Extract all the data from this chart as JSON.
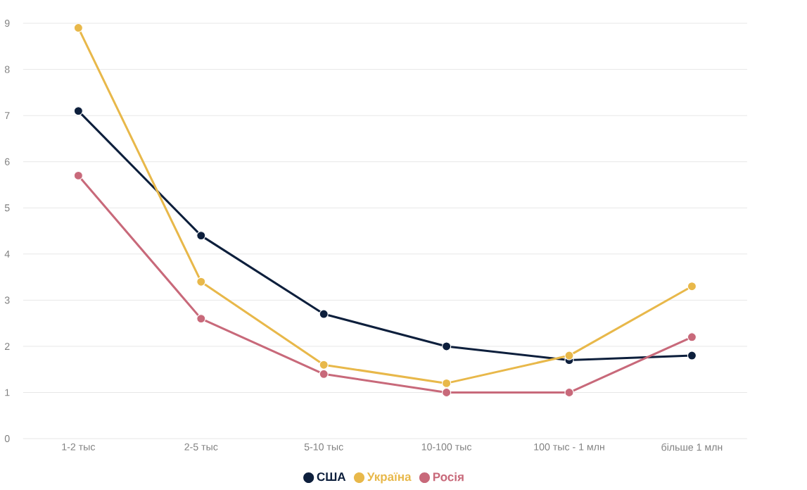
{
  "chart_data": {
    "type": "line",
    "categories": [
      "1-2 тыс",
      "2-5 тыс",
      "5-10 тыс",
      "10-100 тыс",
      "100 тыс - 1 млн",
      "більше 1 млн"
    ],
    "series": [
      {
        "name": "США",
        "color": "#0d1f3c",
        "values": [
          7.1,
          4.4,
          2.7,
          2.0,
          1.7,
          1.8
        ]
      },
      {
        "name": "Україна",
        "color": "#e8b84a",
        "values": [
          8.9,
          3.4,
          1.6,
          1.2,
          1.8,
          3.3
        ]
      },
      {
        "name": "Росія",
        "color": "#c8697a",
        "values": [
          5.7,
          2.6,
          1.4,
          1.0,
          1.0,
          2.2
        ]
      }
    ],
    "ylim": [
      0,
      9
    ],
    "yticks": [
      0,
      1,
      2,
      3,
      4,
      5,
      6,
      7,
      8,
      9
    ],
    "grid": "y",
    "legend": "bottom",
    "marker": "circle",
    "line_style": "solid"
  }
}
